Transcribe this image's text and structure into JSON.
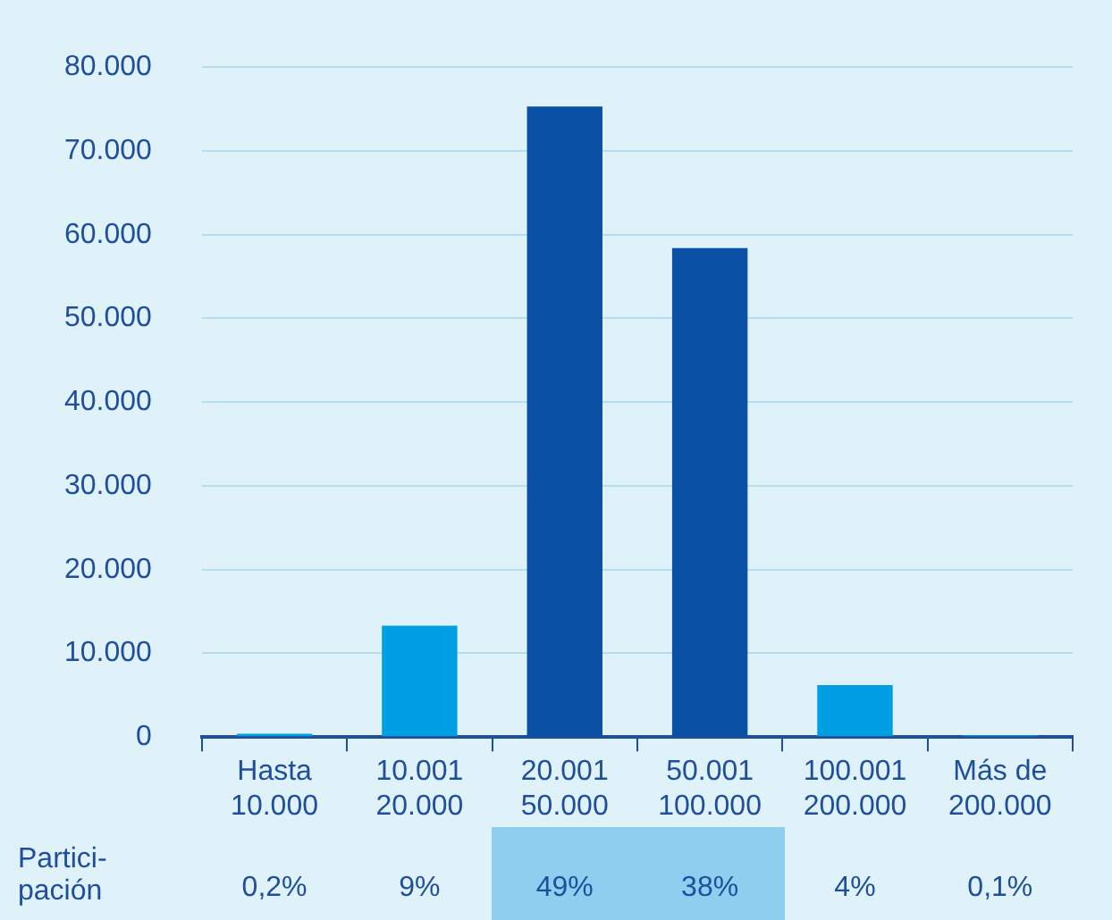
{
  "chart_data": {
    "type": "bar",
    "categories": [
      "Hasta\n10.000",
      "10.001\n20.000",
      "20.001\n50.000",
      "50.001\n100.000",
      "100.001\n200.000",
      "Más de\n200.000"
    ],
    "values": [
      400,
      13300,
      75300,
      58400,
      6200,
      200
    ],
    "colors": [
      "#009fe3",
      "#009fe3",
      "#0a50a4",
      "#0a50a4",
      "#009fe3",
      "#009fe3"
    ],
    "ylim": [
      0,
      80000
    ],
    "yticks": [
      {
        "value": 0,
        "label": "0"
      },
      {
        "value": 10000,
        "label": "10.000"
      },
      {
        "value": 20000,
        "label": "20.000"
      },
      {
        "value": 30000,
        "label": "30.000"
      },
      {
        "value": 40000,
        "label": "40.000"
      },
      {
        "value": 50000,
        "label": "50.000"
      },
      {
        "value": 60000,
        "label": "60.000"
      },
      {
        "value": 70000,
        "label": "70.000"
      },
      {
        "value": 80000,
        "label": "80.000"
      }
    ],
    "grid": "y",
    "legend": false,
    "annotations": [
      "Partici-\npación",
      "0,2%",
      "9%",
      "49%",
      "38%",
      "4%",
      "0,1%"
    ]
  }
}
